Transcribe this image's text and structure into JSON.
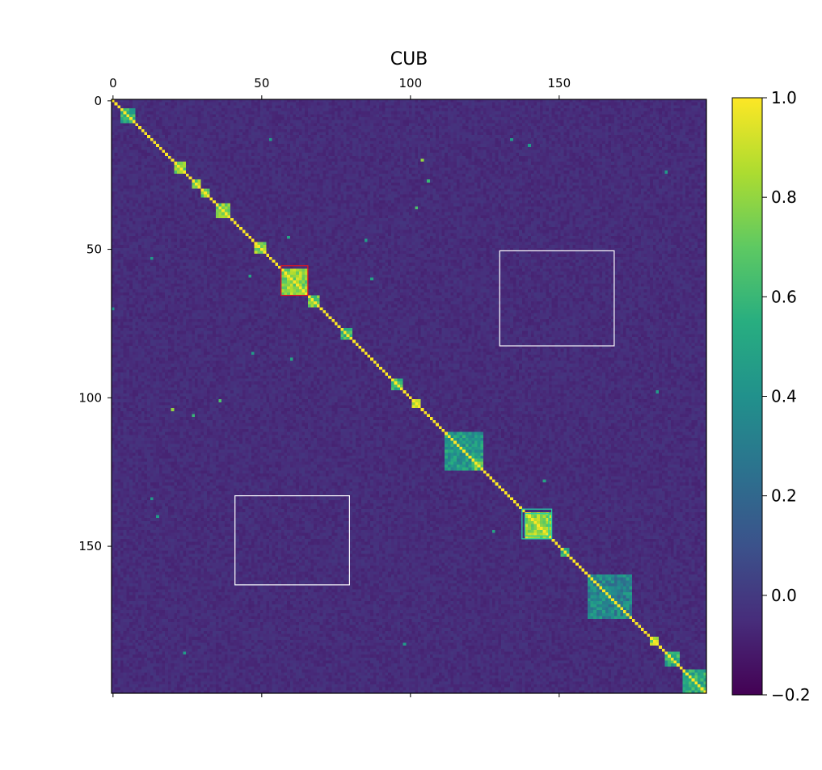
{
  "chart_data": {
    "type": "heatmap",
    "title": "CUB",
    "matrix_size": 200,
    "xlim": [
      0,
      200
    ],
    "ylim": [
      0,
      200
    ],
    "x_ticks": [
      0,
      50,
      100,
      150
    ],
    "x_tick_labels": [
      "0",
      "50",
      "100",
      "150"
    ],
    "x_tick_position": "top",
    "y_ticks": [
      0,
      50,
      100,
      150
    ],
    "y_tick_labels": [
      "0",
      "50",
      "100",
      "150"
    ],
    "colormap": "viridis",
    "value_range": [
      -0.2,
      1.0
    ],
    "background_value": -0.05,
    "diagonal_value": 1.0,
    "colorbar": {
      "ticks": [
        1.0,
        0.8,
        0.6,
        0.4,
        0.2,
        0.0,
        -0.2
      ],
      "tick_labels": [
        "1.0",
        "0.8",
        "0.6",
        "0.4",
        "0.2",
        "0.0",
        "−0.2"
      ],
      "placement": "right"
    },
    "blocks": [
      {
        "start": 3,
        "end": 8,
        "value": 0.55
      },
      {
        "start": 21,
        "end": 25,
        "value": 0.75
      },
      {
        "start": 27,
        "end": 30,
        "value": 0.8
      },
      {
        "start": 30,
        "end": 33,
        "value": 0.75
      },
      {
        "start": 35,
        "end": 40,
        "value": 0.75
      },
      {
        "start": 48,
        "end": 52,
        "value": 0.8
      },
      {
        "start": 57,
        "end": 66,
        "value": 0.78
      },
      {
        "start": 66,
        "end": 70,
        "value": 0.7
      },
      {
        "start": 77,
        "end": 81,
        "value": 0.6
      },
      {
        "start": 94,
        "end": 98,
        "value": 0.6
      },
      {
        "start": 101,
        "end": 104,
        "value": 0.9
      },
      {
        "start": 112,
        "end": 125,
        "value": 0.45
      },
      {
        "start": 121,
        "end": 125,
        "value": 0.7
      },
      {
        "start": 139,
        "end": 148,
        "value": 0.8
      },
      {
        "start": 151,
        "end": 154,
        "value": 0.6
      },
      {
        "start": 160,
        "end": 175,
        "value": 0.35
      },
      {
        "start": 181,
        "end": 184,
        "value": 0.8
      },
      {
        "start": 186,
        "end": 191,
        "value": 0.55
      },
      {
        "start": 192,
        "end": 200,
        "value": 0.55
      }
    ],
    "scattered_cells": [
      {
        "row": 20,
        "col": 104,
        "value": 0.8
      },
      {
        "row": 27,
        "col": 106,
        "value": 0.6
      },
      {
        "row": 36,
        "col": 102,
        "value": 0.65
      },
      {
        "row": 101,
        "col": 36,
        "value": 0.65
      },
      {
        "row": 106,
        "col": 27,
        "value": 0.6
      },
      {
        "row": 104,
        "col": 20,
        "value": 0.8
      },
      {
        "row": 47,
        "col": 85,
        "value": 0.45
      },
      {
        "row": 85,
        "col": 47,
        "value": 0.45
      },
      {
        "row": 60,
        "col": 87,
        "value": 0.5
      },
      {
        "row": 87,
        "col": 60,
        "value": 0.5
      },
      {
        "row": 13,
        "col": 53,
        "value": 0.45
      },
      {
        "row": 53,
        "col": 13,
        "value": 0.45
      },
      {
        "row": 70,
        "col": 0,
        "value": 0.4
      },
      {
        "row": 145,
        "col": 128,
        "value": 0.5
      },
      {
        "row": 128,
        "col": 145,
        "value": 0.5
      },
      {
        "row": 15,
        "col": 140,
        "value": 0.45
      },
      {
        "row": 140,
        "col": 15,
        "value": 0.45
      },
      {
        "row": 59,
        "col": 46,
        "value": 0.5
      },
      {
        "row": 46,
        "col": 59,
        "value": 0.5
      },
      {
        "row": 134,
        "col": 13,
        "value": 0.45
      },
      {
        "row": 13,
        "col": 134,
        "value": 0.45
      },
      {
        "row": 24,
        "col": 186,
        "value": 0.45
      },
      {
        "row": 186,
        "col": 24,
        "value": 0.45
      },
      {
        "row": 98,
        "col": 183,
        "value": 0.45
      },
      {
        "row": 183,
        "col": 98,
        "value": 0.45
      }
    ],
    "annotations": [
      {
        "shape": "rect",
        "color": "#e8141e",
        "x0": 57,
        "x1": 66,
        "y0": 56,
        "y1": 66
      },
      {
        "shape": "rect",
        "color": "#ffffff",
        "x0": 130.5,
        "x1": 169,
        "y0": 51,
        "y1": 83
      },
      {
        "shape": "rect",
        "color": "#ffffff",
        "x0": 41.5,
        "x1": 80,
        "y0": 133.5,
        "y1": 163.5
      },
      {
        "shape": "rect",
        "color": "#22d3a5",
        "x0": 138,
        "x1": 148,
        "y0": 138,
        "y1": 148
      },
      {
        "shape": "rect",
        "color": "#22d3a5",
        "x0": 139,
        "x1": 147,
        "y0": 139.5,
        "y1": 147
      }
    ]
  }
}
